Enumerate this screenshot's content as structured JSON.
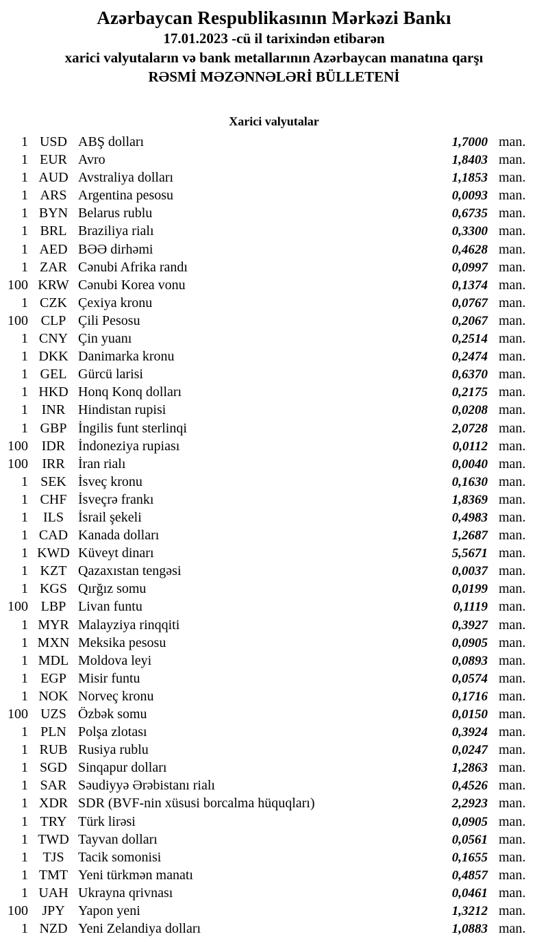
{
  "header": {
    "bank_name": "Azərbaycan Respublikasının Mərkəzi Bankı",
    "date_line": "17.01.2023 -cü il tarixindən etibarən",
    "scope_line": "xarici valyutaların və bank metallarının Azərbaycan manatına qarşı",
    "bulletin_title": "RƏSMİ MƏZƏNNƏLƏRİ BÜLLETENİ"
  },
  "section_title": "Xarici valyutalar",
  "unit_label": "man.",
  "rates": [
    {
      "qty": "1",
      "code": "USD",
      "name": "ABŞ dolları",
      "rate": "1,7000"
    },
    {
      "qty": "1",
      "code": "EUR",
      "name": "Avro",
      "rate": "1,8403"
    },
    {
      "qty": "1",
      "code": "AUD",
      "name": "Avstraliya dolları",
      "rate": "1,1853"
    },
    {
      "qty": "1",
      "code": "ARS",
      "name": "Argentina pesosu",
      "rate": "0,0093"
    },
    {
      "qty": "1",
      "code": "BYN",
      "name": "Belarus rublu",
      "rate": "0,6735"
    },
    {
      "qty": "1",
      "code": "BRL",
      "name": "Braziliya rialı",
      "rate": "0,3300"
    },
    {
      "qty": "1",
      "code": "AED",
      "name": "BƏƏ dirhəmi",
      "rate": "0,4628"
    },
    {
      "qty": "1",
      "code": "ZAR",
      "name": "Cənubi Afrika randı",
      "rate": "0,0997"
    },
    {
      "qty": "100",
      "code": "KRW",
      "name": "Cənubi Korea vonu",
      "rate": "0,1374"
    },
    {
      "qty": "1",
      "code": "CZK",
      "name": "Çexiya kronu",
      "rate": "0,0767"
    },
    {
      "qty": "100",
      "code": "CLP",
      "name": "Çili Pesosu",
      "rate": "0,2067"
    },
    {
      "qty": "1",
      "code": "CNY",
      "name": "Çin yuanı",
      "rate": "0,2514"
    },
    {
      "qty": "1",
      "code": "DKK",
      "name": "Danimarka kronu",
      "rate": "0,2474"
    },
    {
      "qty": "1",
      "code": "GEL",
      "name": "Gürcü larisi",
      "rate": "0,6370"
    },
    {
      "qty": "1",
      "code": "HKD",
      "name": "Honq Konq dolları",
      "rate": "0,2175"
    },
    {
      "qty": "1",
      "code": "INR",
      "name": "Hindistan rupisi",
      "rate": "0,0208"
    },
    {
      "qty": "1",
      "code": "GBP",
      "name": "İngilis funt sterlinqi",
      "rate": "2,0728"
    },
    {
      "qty": "100",
      "code": "IDR",
      "name": "İndoneziya rupiası",
      "rate": "0,0112"
    },
    {
      "qty": "100",
      "code": "IRR",
      "name": "İran rialı",
      "rate": "0,0040"
    },
    {
      "qty": "1",
      "code": "SEK",
      "name": "İsveç kronu",
      "rate": "0,1630"
    },
    {
      "qty": "1",
      "code": "CHF",
      "name": "İsveçrə frankı",
      "rate": "1,8369"
    },
    {
      "qty": "1",
      "code": "ILS",
      "name": "İsrail şekeli",
      "rate": "0,4983"
    },
    {
      "qty": "1",
      "code": "CAD",
      "name": "Kanada dolları",
      "rate": "1,2687"
    },
    {
      "qty": "1",
      "code": "KWD",
      "name": "Küveyt dinarı",
      "rate": "5,5671"
    },
    {
      "qty": "1",
      "code": "KZT",
      "name": "Qazaxıstan tengəsi",
      "rate": "0,0037"
    },
    {
      "qty": "1",
      "code": "KGS",
      "name": "Qırğız somu",
      "rate": "0,0199"
    },
    {
      "qty": "100",
      "code": "LBP",
      "name": "Livan funtu",
      "rate": "0,1119"
    },
    {
      "qty": "1",
      "code": "MYR",
      "name": "Malayziya rinqqiti",
      "rate": "0,3927"
    },
    {
      "qty": "1",
      "code": "MXN",
      "name": "Meksika pesosu",
      "rate": "0,0905"
    },
    {
      "qty": "1",
      "code": "MDL",
      "name": "Moldova leyi",
      "rate": "0,0893"
    },
    {
      "qty": "1",
      "code": "EGP",
      "name": "Misir funtu",
      "rate": "0,0574"
    },
    {
      "qty": "1",
      "code": "NOK",
      "name": "Norveç kronu",
      "rate": "0,1716"
    },
    {
      "qty": "100",
      "code": "UZS",
      "name": "Özbək somu",
      "rate": "0,0150"
    },
    {
      "qty": "1",
      "code": "PLN",
      "name": "Polşa zlotası",
      "rate": "0,3924"
    },
    {
      "qty": "1",
      "code": "RUB",
      "name": "Rusiya rublu",
      "rate": "0,0247"
    },
    {
      "qty": "1",
      "code": "SGD",
      "name": "Sinqapur dolları",
      "rate": "1,2863"
    },
    {
      "qty": "1",
      "code": "SAR",
      "name": "Səudiyyə Ərəbistanı rialı",
      "rate": "0,4526"
    },
    {
      "qty": "1",
      "code": "XDR",
      "name": "SDR (BVF-nin xüsusi borcalma hüquqları)",
      "rate": "2,2923"
    },
    {
      "qty": "1",
      "code": "TRY",
      "name": "Türk lirəsi",
      "rate": "0,0905"
    },
    {
      "qty": "1",
      "code": "TWD",
      "name": "Tayvan dolları",
      "rate": "0,0561"
    },
    {
      "qty": "1",
      "code": "TJS",
      "name": "Tacik somonisi",
      "rate": "0,1655"
    },
    {
      "qty": "1",
      "code": "TMT",
      "name": "Yeni türkmən manatı",
      "rate": "0,4857"
    },
    {
      "qty": "1",
      "code": "UAH",
      "name": "Ukrayna qrivnası",
      "rate": "0,0461"
    },
    {
      "qty": "100",
      "code": "JPY",
      "name": "Yapon yeni",
      "rate": "1,3212"
    },
    {
      "qty": "1",
      "code": "NZD",
      "name": "Yeni Zelandiya dolları",
      "rate": "1,0883"
    }
  ]
}
